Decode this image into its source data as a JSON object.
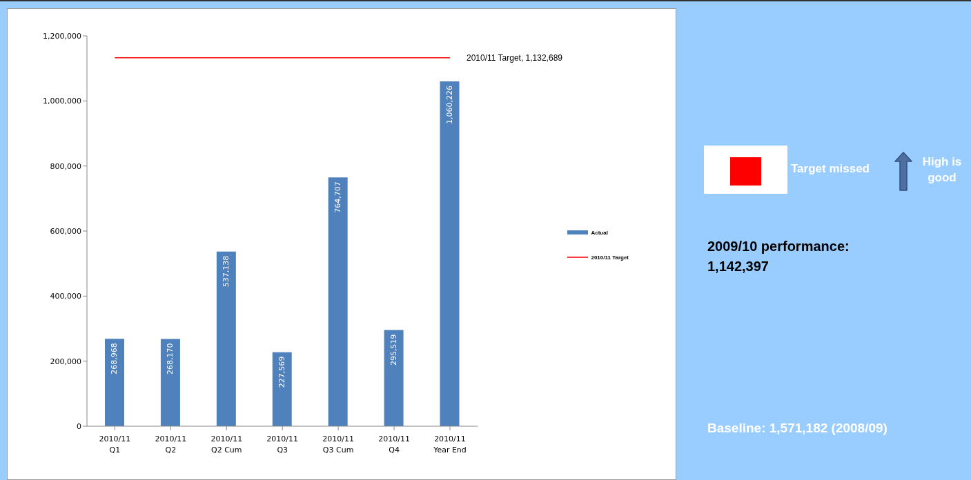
{
  "chart_data": {
    "type": "bar",
    "categories": [
      "2010/11\nQ1",
      "2010/11\nQ2",
      "2010/11\nQ2 Cum",
      "2010/11\nQ3",
      "2010/11\nQ3 Cum",
      "2010/11\nQ4",
      "2010/11\nYear End"
    ],
    "series": [
      {
        "name": "Actual",
        "color": "#4f81bd",
        "values": [
          268968,
          268170,
          537138,
          227569,
          764707,
          295519,
          1060226
        ],
        "value_labels": [
          "268,968",
          "268,170",
          "537,138",
          "227,569",
          "764,707",
          "295,519",
          "1,060,226"
        ]
      },
      {
        "name": "2010/11 Target",
        "type": "line",
        "color": "#ff0000",
        "values": [
          1132689,
          1132689,
          1132689,
          1132689,
          1132689,
          1132689,
          1132689
        ]
      }
    ],
    "ylim": [
      0,
      1200000
    ],
    "yticks": [
      {
        "value": 0,
        "label": "0"
      },
      {
        "value": 200000,
        "label": "200,000"
      },
      {
        "value": 400000,
        "label": "400,000"
      },
      {
        "value": 600000,
        "label": "600,000"
      },
      {
        "value": 800000,
        "label": "800,000"
      },
      {
        "value": 1000000,
        "label": "1,000,000"
      },
      {
        "value": 1200000,
        "label": "1,200,000"
      }
    ],
    "legend": "right",
    "marker": "none",
    "annotations": [
      {
        "text": "2010/11 Target, 1,132,689",
        "x": "2010/11\nYear End",
        "y": 1132689
      },
      "Target missed",
      "High is good",
      "2009/10 performance: 1,142,397",
      "Baseline: 1,571,182 (2008/09)"
    ]
  }
}
